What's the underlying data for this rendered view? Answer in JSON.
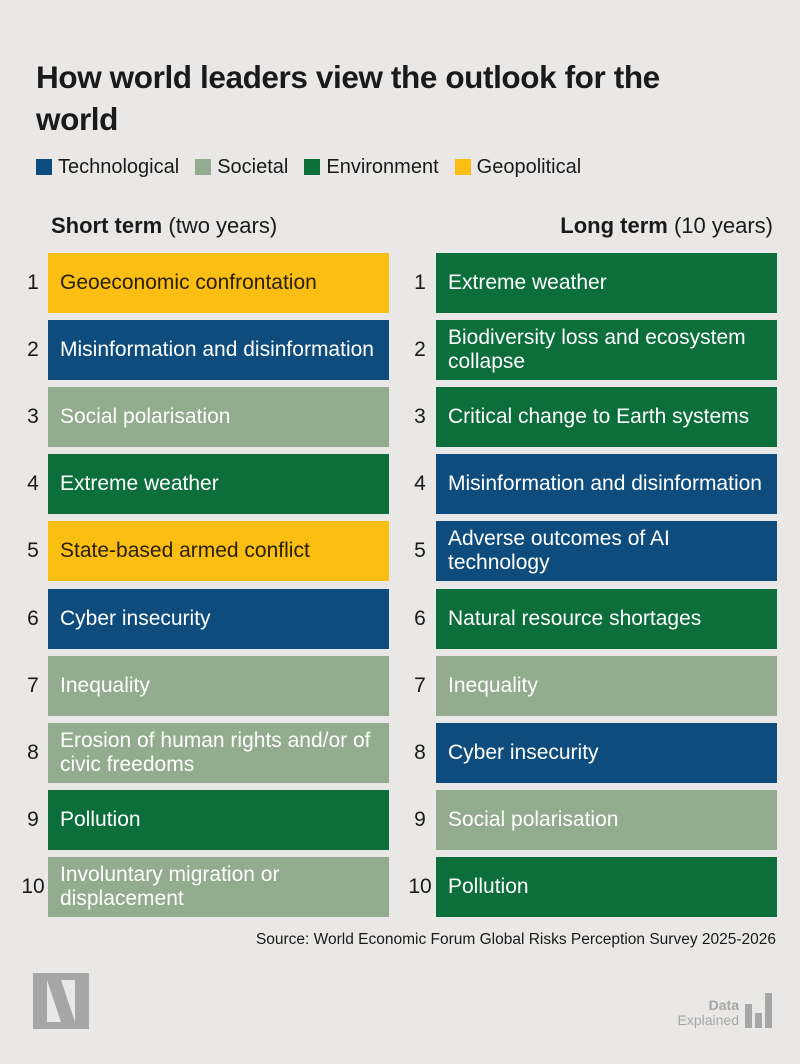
{
  "title": "How world leaders view the outlook for the world",
  "legend": [
    {
      "label": "Technological",
      "color": "#0e4c7e"
    },
    {
      "label": "Societal",
      "color": "#93ab8e"
    },
    {
      "label": "Environment",
      "color": "#0b6e3b"
    },
    {
      "label": "Geopolitical",
      "color": "#fbbf13"
    }
  ],
  "chart_data": {
    "type": "table",
    "columns": [
      {
        "heading_bold": "Short term",
        "heading_rest": "(two years)",
        "rows": [
          {
            "rank": "1",
            "label": "Geoeconomic confrontation",
            "category": "Geopolitical"
          },
          {
            "rank": "2",
            "label": "Misinformation and disinformation",
            "category": "Technological"
          },
          {
            "rank": "3",
            "label": "Social polarisation",
            "category": "Societal"
          },
          {
            "rank": "4",
            "label": "Extreme weather",
            "category": "Environment"
          },
          {
            "rank": "5",
            "label": "State-based armed conflict",
            "category": "Geopolitical"
          },
          {
            "rank": "6",
            "label": "Cyber insecurity",
            "category": "Technological"
          },
          {
            "rank": "7",
            "label": "Inequality",
            "category": "Societal"
          },
          {
            "rank": "8",
            "label": "Erosion of human rights and/or of civic freedoms",
            "category": "Societal"
          },
          {
            "rank": "9",
            "label": "Pollution",
            "category": "Environment"
          },
          {
            "rank": "10",
            "label": "Involuntary migration or displacement",
            "category": "Societal"
          }
        ]
      },
      {
        "heading_bold": "Long term",
        "heading_rest": "(10 years)",
        "rows": [
          {
            "rank": "1",
            "label": "Extreme weather",
            "category": "Environment"
          },
          {
            "rank": "2",
            "label": "Biodiversity loss and ecosystem collapse",
            "category": "Environment"
          },
          {
            "rank": "3",
            "label": "Critical change to Earth systems",
            "category": "Environment"
          },
          {
            "rank": "4",
            "label": "Misinformation and disinformation",
            "category": "Technological"
          },
          {
            "rank": "5",
            "label": "Adverse outcomes of AI technology",
            "category": "Technological"
          },
          {
            "rank": "6",
            "label": "Natural resource shortages",
            "category": "Environment"
          },
          {
            "rank": "7",
            "label": "Inequality",
            "category": "Societal"
          },
          {
            "rank": "8",
            "label": "Cyber insecurity",
            "category": "Technological"
          },
          {
            "rank": "9",
            "label": "Social polarisation",
            "category": "Societal"
          },
          {
            "rank": "10",
            "label": "Pollution",
            "category": "Environment"
          }
        ]
      }
    ]
  },
  "source": "Source: World Economic Forum Global Risks Perception Survey 2025-2026",
  "branding": {
    "logo_letter": "N",
    "data_explained_line1": "Data",
    "data_explained_line2": "Explained"
  }
}
